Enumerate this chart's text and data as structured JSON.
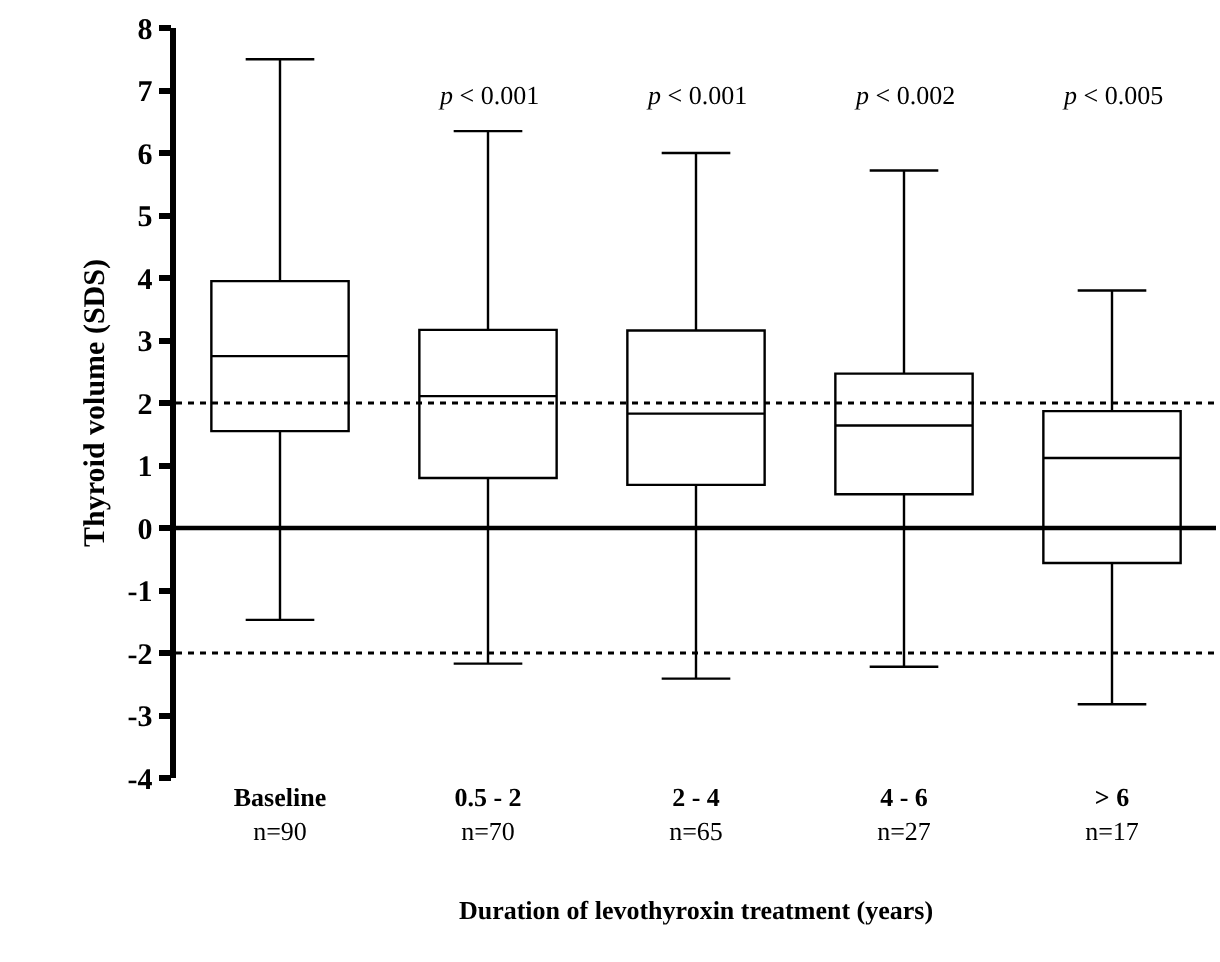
{
  "chart_data": {
    "type": "box",
    "xlabel": "Duration of levothyroxin treatment (years)",
    "ylabel": "Thyroid volume (SDS)",
    "categories": [
      "Baseline\nn=90",
      "0.5 - 2\nn=70",
      "2 - 4\nn=65",
      "4 - 6\nn=27",
      "> 6\nn=17"
    ],
    "boxes": [
      {
        "low": -1.47,
        "q1": 1.55,
        "median": 2.75,
        "q3": 3.95,
        "high": 7.5
      },
      {
        "low": -2.17,
        "q1": 0.8,
        "median": 2.11,
        "q3": 3.17,
        "high": 6.35
      },
      {
        "low": -2.41,
        "q1": 0.69,
        "median": 1.83,
        "q3": 3.16,
        "high": 6.0
      },
      {
        "low": -2.22,
        "q1": 0.54,
        "median": 1.64,
        "q3": 2.47,
        "high": 5.72
      },
      {
        "low": -2.82,
        "q1": -0.56,
        "median": 1.12,
        "q3": 1.87,
        "high": 3.8
      }
    ],
    "color": "#000000",
    "ylim": [
      -4,
      8
    ],
    "yticks": [
      -4,
      -3,
      -2,
      -1,
      0,
      1,
      2,
      3,
      4,
      5,
      6,
      7,
      8
    ],
    "grid": false,
    "ref_lines": [
      {
        "axis": "y",
        "value": 0,
        "line_style": "solid"
      },
      {
        "axis": "y",
        "value": 2,
        "line_style": "dotted"
      },
      {
        "axis": "y",
        "value": -2,
        "line_style": "dotted"
      }
    ],
    "annotations": [
      "p < 0.001",
      "p < 0.001",
      "p < 0.002",
      "p < 0.005"
    ]
  }
}
